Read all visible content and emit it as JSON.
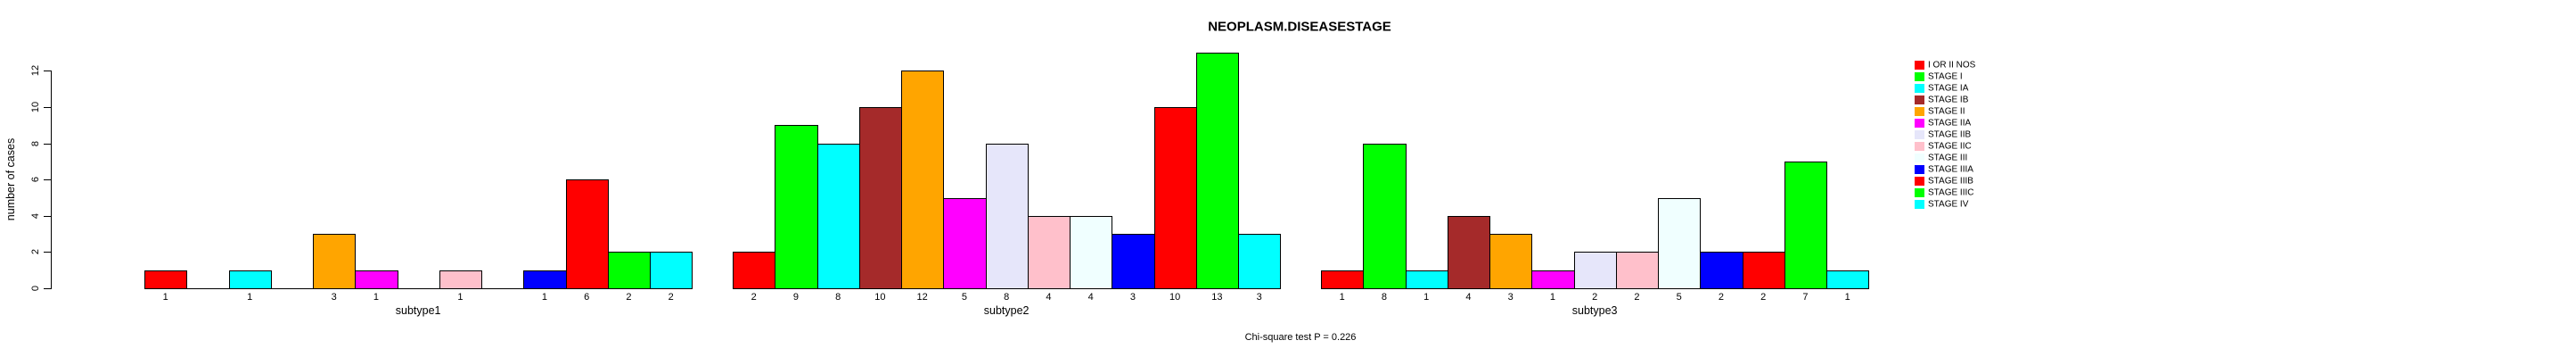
{
  "chart_data": {
    "type": "bar",
    "title": "NEOPLASM.DISEASESTAGE",
    "ylabel": "number of cases",
    "ylim": [
      0,
      12
    ],
    "yticks": [
      0,
      2,
      4,
      6,
      8,
      10,
      12
    ],
    "annotation": "Chi-square test P = 0.226",
    "legend_position": "right",
    "grid": false,
    "stages": [
      {
        "label": "I OR II NOS",
        "color": "#FF0000"
      },
      {
        "label": "STAGE I",
        "color": "#00FF00"
      },
      {
        "label": "STAGE IA",
        "color": "#00FFFF"
      },
      {
        "label": "STAGE IB",
        "color": "#A52A2A"
      },
      {
        "label": "STAGE II",
        "color": "#FFA500"
      },
      {
        "label": "STAGE IIA",
        "color": "#FF00FF"
      },
      {
        "label": "STAGE IIB",
        "color": "#E6E6FA"
      },
      {
        "label": "STAGE IIC",
        "color": "#FFC0CB"
      },
      {
        "label": "STAGE III",
        "color": "#F0FFFF"
      },
      {
        "label": "STAGE IIIA",
        "color": "#0000FF"
      },
      {
        "label": "STAGE IIIB",
        "color": "#FF0000"
      },
      {
        "label": "STAGE IIIC",
        "color": "#00FF00"
      },
      {
        "label": "STAGE IV",
        "color": "#00FFFF"
      }
    ],
    "groups": [
      {
        "label": "subtype1",
        "values": [
          1,
          0,
          1,
          0,
          3,
          1,
          0,
          1,
          0,
          1,
          6,
          2,
          2
        ]
      },
      {
        "label": "subtype2",
        "values": [
          2,
          9,
          8,
          10,
          12,
          5,
          8,
          4,
          4,
          3,
          10,
          13,
          3
        ]
      },
      {
        "label": "subtype3",
        "values": [
          1,
          8,
          1,
          4,
          3,
          1,
          2,
          2,
          5,
          2,
          2,
          7,
          1
        ]
      }
    ]
  }
}
